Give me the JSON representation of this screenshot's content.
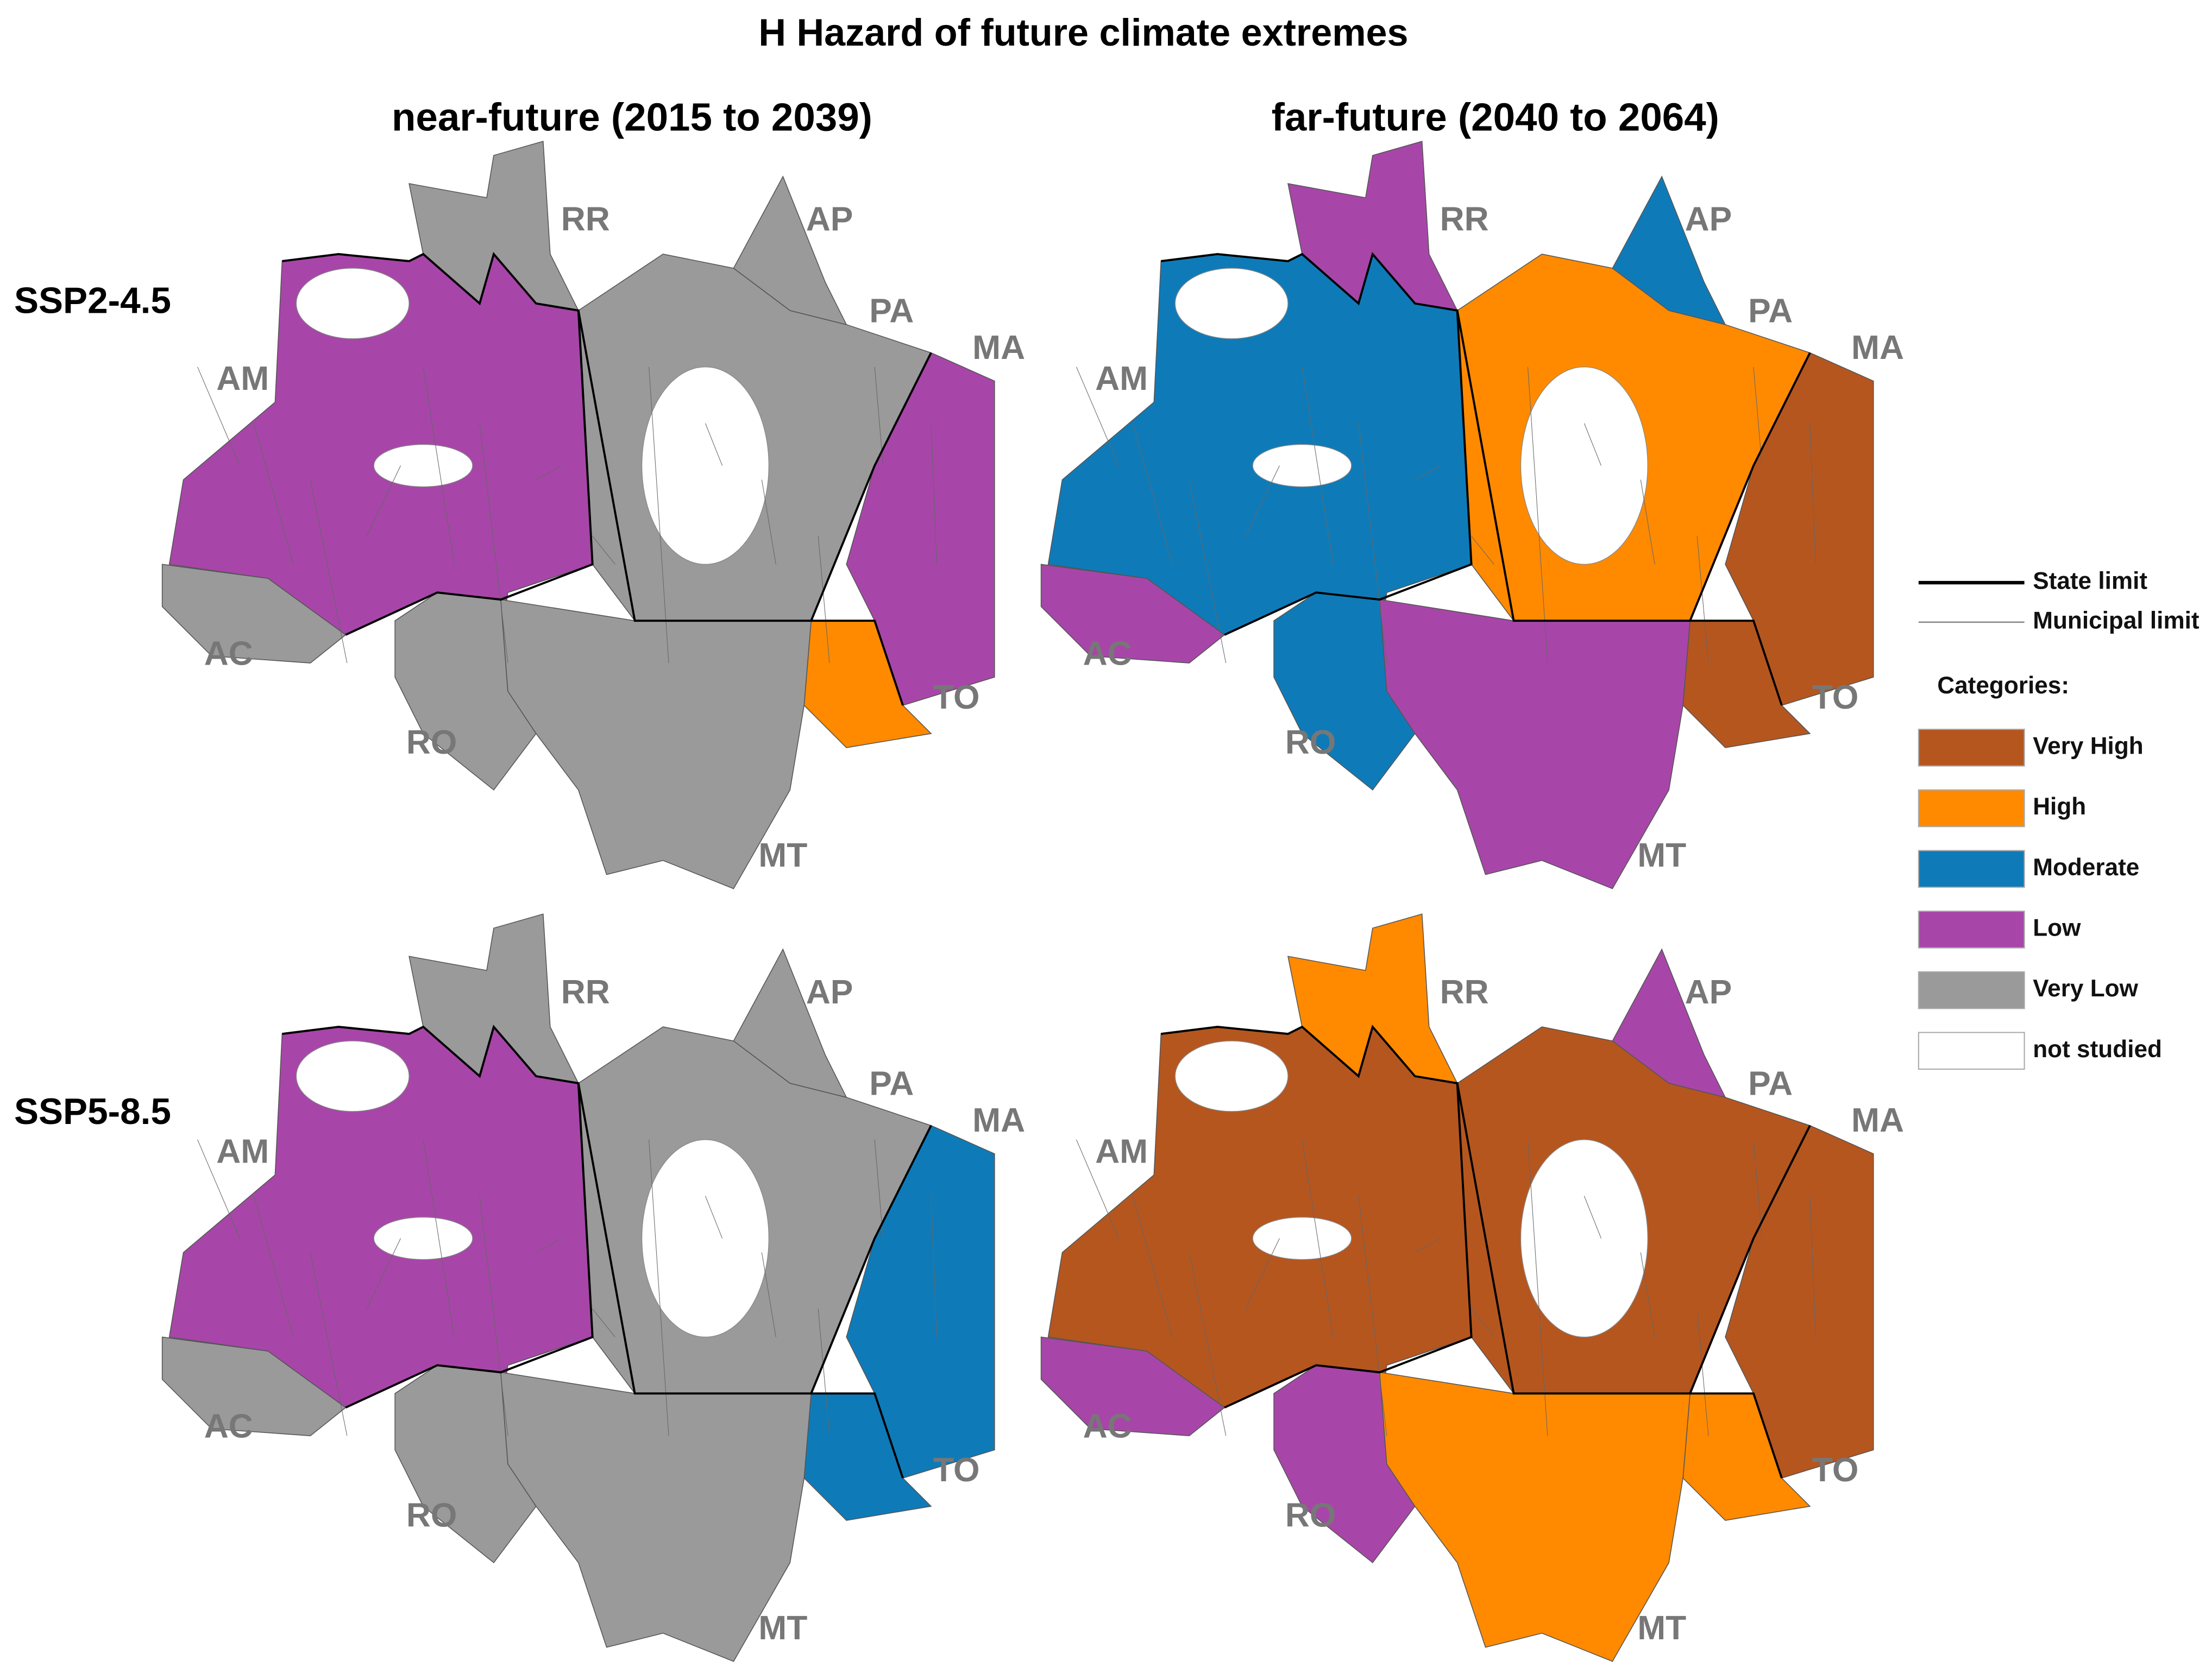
{
  "header": {
    "title": "H Hazard of future climate extremes"
  },
  "columns": [
    "near-future (2015 to 2039)",
    "far-future (2040 to 2064)"
  ],
  "rows": [
    "SSP2-4.5",
    "SSP5-8.5"
  ],
  "states": [
    "AM",
    "AC",
    "RR",
    "RO",
    "PA",
    "AP",
    "MA",
    "TO",
    "MT"
  ],
  "legend": {
    "lines": [
      "State limit",
      "Municipal limit"
    ],
    "categories_title": "Categories:",
    "categories": [
      {
        "name": "Very High",
        "color": "#b5561f"
      },
      {
        "name": "High",
        "color": "#ff8a00"
      },
      {
        "name": "Moderate",
        "color": "#0e7bb8"
      },
      {
        "name": "Low",
        "color": "#a746a8"
      },
      {
        "name": "Very Low",
        "color": "#9a9a9a"
      },
      {
        "name": "not studied",
        "color": "#ffffff"
      }
    ]
  },
  "panels": [
    {
      "fills": [
        "Low",
        "Very Low",
        "Very Low",
        "Very Low",
        "Very Low",
        "Very Low",
        "Low",
        "High",
        "Very Low"
      ]
    },
    {
      "fills": [
        "Moderate",
        "Low",
        "Low",
        "Moderate",
        "High",
        "Moderate",
        "Very High",
        "Very High",
        "Low"
      ]
    },
    {
      "fills": [
        "Low",
        "Very Low",
        "Very Low",
        "Very Low",
        "Very Low",
        "Very Low",
        "Moderate",
        "Moderate",
        "Very Low"
      ]
    },
    {
      "fills": [
        "Very High",
        "Low",
        "High",
        "Low",
        "Very High",
        "Low",
        "Very High",
        "High",
        "High"
      ]
    }
  ]
}
